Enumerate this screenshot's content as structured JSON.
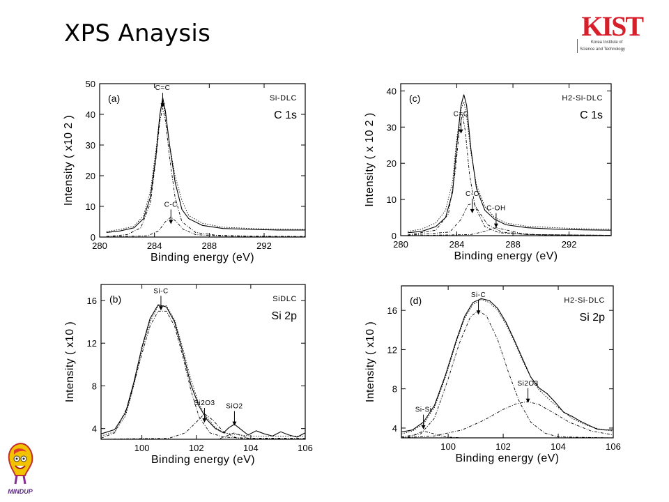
{
  "slide": {
    "title": "XPS Anaysis",
    "logo": {
      "main": "KIST",
      "line1": "Korea Institute of",
      "line2": "Science and Technology"
    },
    "mascot_text": "MINDUP"
  },
  "chart_data": [
    {
      "type": "line",
      "panel": "(a)",
      "sample": "Si-DLC",
      "region": "C 1s",
      "xlabel": "Binding energy (eV)",
      "ylabel": "Intensity ( x10 2 )",
      "xlim": [
        280,
        295
      ],
      "ylim": [
        0,
        50
      ],
      "xticks": [
        280,
        284,
        288,
        292
      ],
      "yticks": [
        0,
        10,
        20,
        30,
        40,
        50
      ],
      "annotations": [
        {
          "text": "C=C",
          "x": 284.6,
          "y": 42
        },
        {
          "text": "C-C",
          "x": 285.2,
          "y": 4
        }
      ],
      "series": [
        {
          "style": "solid",
          "x": [
            280.5,
            281.5,
            282.5,
            283.2,
            283.7,
            284.1,
            284.4,
            284.6,
            284.8,
            285.1,
            285.5,
            286.0,
            286.5,
            287.5,
            289,
            291,
            293,
            295
          ],
          "values": [
            1.5,
            2.0,
            3.0,
            6,
            13,
            26,
            40,
            45.5,
            41,
            30,
            18,
            9,
            6,
            3.8,
            2.8,
            2.5,
            2.3,
            2.3
          ]
        },
        {
          "style": "dotted",
          "x": [
            280.5,
            281.5,
            282.5,
            283.2,
            283.7,
            284.1,
            284.4,
            284.6,
            284.8,
            285.1,
            285.5,
            286.0,
            286.5,
            287.5,
            289,
            291,
            293,
            295
          ],
          "values": [
            1.8,
            2.5,
            3.5,
            7,
            15,
            28,
            40,
            44,
            40,
            30,
            20,
            12,
            7,
            4.5,
            3.2,
            2.8,
            2.6,
            2.5
          ]
        },
        {
          "style": "dashdot",
          "x": [
            280.5,
            282,
            283,
            283.7,
            284.1,
            284.4,
            284.6,
            284.8,
            285.1,
            285.5,
            286,
            287,
            288.5,
            291,
            295
          ],
          "values": [
            0.2,
            0.8,
            3,
            11,
            25,
            38,
            42,
            38,
            26,
            13,
            5,
            1.5,
            0.6,
            0.3,
            0.2
          ]
        },
        {
          "style": "dashdot",
          "x": [
            280.5,
            283.5,
            284.3,
            284.8,
            285.2,
            285.6,
            286.1,
            287,
            289,
            295
          ],
          "values": [
            0.1,
            0.4,
            2,
            5,
            6.5,
            5,
            2.5,
            0.8,
            0.3,
            0.1
          ]
        }
      ]
    },
    {
      "type": "line",
      "panel": "(c)",
      "sample": "H2-Si-DLC",
      "region": "C 1s",
      "xlabel": "Binding energy (eV)",
      "ylabel": "Intensity ( x 10 2 )",
      "xlim": [
        280,
        295
      ],
      "ylim": [
        0,
        42
      ],
      "xticks": [
        280,
        284,
        288,
        292
      ],
      "yticks": [
        0,
        10,
        20,
        30,
        40
      ],
      "annotations": [
        {
          "text": "C=C",
          "x": 284.3,
          "y": 28
        },
        {
          "text": "C-C",
          "x": 285.1,
          "y": 6
        },
        {
          "text": "C-OH",
          "x": 286.8,
          "y": 2
        }
      ],
      "series": [
        {
          "style": "solid",
          "x": [
            280.5,
            281.5,
            282.5,
            283.2,
            283.7,
            284.0,
            284.3,
            284.5,
            284.7,
            285.0,
            285.4,
            286.0,
            286.7,
            287.5,
            289,
            291,
            293,
            295
          ],
          "values": [
            0.8,
            1.2,
            2.5,
            5,
            12,
            25,
            36,
            39,
            36,
            24,
            13,
            7,
            4.5,
            3,
            2.2,
            1.8,
            1.6,
            1.5
          ]
        },
        {
          "style": "dotted",
          "x": [
            280.5,
            281.5,
            282.5,
            283.2,
            283.7,
            284.0,
            284.3,
            284.5,
            284.7,
            285.0,
            285.4,
            286.0,
            286.7,
            287.5,
            289,
            291,
            293,
            295
          ],
          "values": [
            1.2,
            1.8,
            3.5,
            7,
            15,
            27,
            35,
            37,
            33,
            23,
            14,
            8,
            5,
            3.5,
            2.6,
            2.2,
            1.9,
            1.8
          ]
        },
        {
          "style": "dashdot",
          "x": [
            280.5,
            282.5,
            283.4,
            283.9,
            284.2,
            284.4,
            284.6,
            284.9,
            285.3,
            286,
            287,
            289,
            295
          ],
          "values": [
            0.2,
            1.5,
            6,
            18,
            30,
            33.5,
            29,
            17,
            8,
            2.5,
            0.8,
            0.3,
            0.1
          ]
        },
        {
          "style": "dashdot",
          "x": [
            280.5,
            283.5,
            284.3,
            284.8,
            285.2,
            285.6,
            286.2,
            287.2,
            289,
            295
          ],
          "values": [
            0.1,
            1,
            4.5,
            8.5,
            9,
            6.5,
            3,
            1,
            0.3,
            0.1
          ]
        },
        {
          "style": "dashdot",
          "x": [
            280.5,
            285,
            286,
            286.8,
            287.6,
            288.6,
            290,
            295
          ],
          "values": [
            0,
            0.3,
            1.2,
            2.2,
            1.5,
            0.6,
            0.2,
            0
          ]
        }
      ]
    },
    {
      "type": "line",
      "panel": "(b)",
      "sample": "SiDLC",
      "region": "Si 2p",
      "xlabel": "Binding energy (eV)",
      "ylabel": "Intensity ( x10 )",
      "xlim": [
        98.5,
        106
      ],
      "ylim": [
        3,
        17.5
      ],
      "xticks": [
        100,
        102,
        104,
        106
      ],
      "yticks": [
        4,
        8,
        12,
        16
      ],
      "annotations": [
        {
          "text": "Si-C",
          "x": 100.7,
          "y": 15
        },
        {
          "text": "Si2O3",
          "x": 102.3,
          "y": 4.5
        },
        {
          "text": "SiO2",
          "x": 103.4,
          "y": 4.2
        }
      ],
      "series": [
        {
          "style": "solid",
          "x": [
            98.5,
            99,
            99.4,
            99.7,
            100,
            100.3,
            100.6,
            100.9,
            101.2,
            101.5,
            101.8,
            102.1,
            102.4,
            102.7,
            103,
            103.2,
            103.4,
            103.6,
            103.9,
            104.2,
            104.5,
            104.8,
            105.1,
            105.4,
            105.7,
            106
          ],
          "values": [
            3.5,
            3.9,
            5.5,
            8.3,
            11.6,
            14.3,
            15.6,
            15.4,
            14,
            11.2,
            8.1,
            6.1,
            4.8,
            4.0,
            3.6,
            4.1,
            4.4,
            4.0,
            3.4,
            3.8,
            3.5,
            3.3,
            3.7,
            3.4,
            3.2,
            3.6
          ]
        },
        {
          "style": "dotted",
          "x": [
            98.5,
            99,
            99.4,
            99.7,
            100,
            100.3,
            100.6,
            100.9,
            101.2,
            101.5,
            101.8,
            102.1,
            102.4,
            102.7,
            103,
            103.3,
            103.6,
            104,
            105,
            106
          ],
          "values": [
            3.3,
            3.7,
            5.2,
            8.0,
            11.4,
            14.0,
            15.5,
            15.5,
            14.2,
            11.6,
            8.6,
            6.3,
            5.0,
            4.1,
            3.6,
            3.5,
            3.4,
            3.3,
            3.3,
            3.3
          ]
        },
        {
          "style": "dashdot",
          "x": [
            98.5,
            99,
            99.5,
            100,
            100.3,
            100.6,
            100.9,
            101.2,
            101.5,
            101.8,
            102.1,
            102.5,
            103,
            104,
            106
          ],
          "values": [
            3.1,
            3.6,
            6.2,
            11,
            13.6,
            15,
            15,
            13.6,
            10.8,
            7.6,
            5.1,
            3.6,
            3.2,
            3.1,
            3.1
          ]
        },
        {
          "style": "dashdot",
          "x": [
            98.5,
            101,
            101.6,
            102,
            102.3,
            102.6,
            103,
            103.5,
            106
          ],
          "values": [
            3.0,
            3.1,
            3.6,
            4.6,
            5.4,
            4.8,
            3.7,
            3.1,
            3.0
          ]
        },
        {
          "style": "dashdot",
          "x": [
            98.5,
            102.8,
            103.1,
            103.4,
            103.7,
            104,
            106
          ],
          "values": [
            3.0,
            3.0,
            3.3,
            3.6,
            3.3,
            3.0,
            3.0
          ]
        },
        {
          "style": "dotted",
          "x": [
            98.5,
            106
          ],
          "values": [
            3.0,
            3.0
          ]
        }
      ]
    },
    {
      "type": "line",
      "panel": "(d)",
      "sample": "H2-Si-DLC",
      "region": "Si 2p",
      "xlabel": "Binding energy (eV)",
      "ylabel": "Intensity ( x10 )",
      "xlim": [
        98.3,
        106
      ],
      "ylim": [
        3,
        18.5
      ],
      "xticks": [
        100,
        102,
        104,
        106
      ],
      "yticks": [
        4,
        8,
        12,
        16
      ],
      "annotations": [
        {
          "text": "Si-Si",
          "x": 99.1,
          "y": 3.8
        },
        {
          "text": "Si-C",
          "x": 101.1,
          "y": 15.5
        },
        {
          "text": "Si2O3",
          "x": 102.9,
          "y": 6.5
        }
      ],
      "series": [
        {
          "style": "solid",
          "x": [
            98.3,
            98.7,
            99.1,
            99.5,
            99.9,
            100.3,
            100.6,
            100.9,
            101.2,
            101.5,
            101.8,
            102.1,
            102.4,
            102.7,
            103,
            103.3,
            103.6,
            103.9,
            104.2,
            104.5,
            104.8,
            105.1,
            105.4,
            105.7,
            106
          ],
          "values": [
            3.6,
            3.8,
            4.6,
            6.3,
            9.4,
            13,
            15.4,
            16.8,
            17.2,
            17,
            16.2,
            14.8,
            13,
            11.1,
            9.2,
            8.1,
            7.5,
            6.6,
            5.6,
            5.2,
            4.7,
            4.3,
            3.9,
            3.8,
            3.8
          ]
        },
        {
          "style": "dotted",
          "x": [
            98.3,
            98.7,
            99.1,
            99.5,
            99.9,
            100.3,
            100.6,
            100.9,
            101.2,
            101.5,
            101.8,
            102.1,
            102.4,
            102.7,
            103,
            103.3,
            103.6,
            104,
            104.5,
            105,
            105.5,
            106
          ],
          "values": [
            3.4,
            3.7,
            4.4,
            6.1,
            9.2,
            12.8,
            15.2,
            16.6,
            17.1,
            16.8,
            16,
            14.6,
            12.8,
            10.9,
            9.2,
            7.9,
            7.1,
            6.1,
            5,
            4.3,
            3.9,
            3.7
          ]
        },
        {
          "style": "dashdot",
          "x": [
            98.3,
            99,
            99.5,
            100,
            100.4,
            100.8,
            101.1,
            101.4,
            101.8,
            102.2,
            102.6,
            103,
            103.5,
            104,
            106
          ],
          "values": [
            3.1,
            3.4,
            5,
            9,
            12.6,
            15.3,
            16,
            15.4,
            13,
            9.6,
            6.6,
            4.6,
            3.5,
            3.1,
            3.0
          ]
        },
        {
          "style": "dashdot",
          "x": [
            98.3,
            99.5,
            100.5,
            101.3,
            102,
            102.5,
            102.9,
            103.3,
            103.8,
            104.4,
            105.2,
            106
          ],
          "values": [
            3.0,
            3.2,
            3.8,
            4.8,
            5.9,
            6.5,
            6.7,
            6.4,
            5.6,
            4.6,
            3.7,
            3.3
          ]
        },
        {
          "style": "dashdot",
          "x": [
            98.3,
            98.7,
            99.1,
            99.5,
            99.9,
            100.5,
            106
          ],
          "values": [
            3.0,
            3.2,
            3.7,
            3.4,
            3.1,
            3.0,
            3.0
          ]
        },
        {
          "style": "dotted",
          "x": [
            98.3,
            106
          ],
          "values": [
            3.0,
            3.0
          ]
        }
      ]
    }
  ]
}
